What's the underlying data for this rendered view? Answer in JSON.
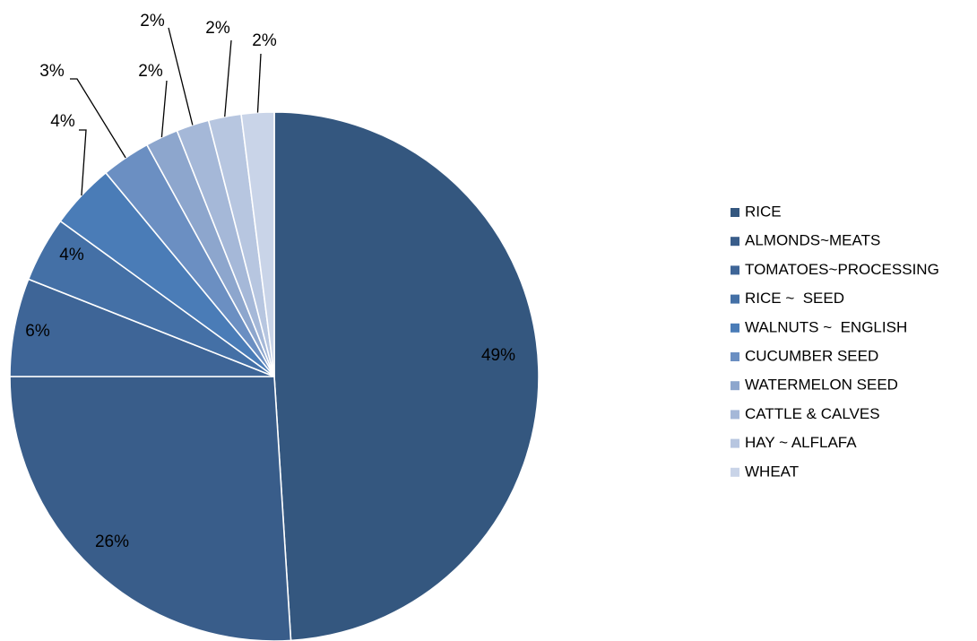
{
  "chart_data": {
    "type": "pie",
    "title": "",
    "slices": [
      {
        "name": "RICE",
        "value": 49,
        "label": "49%",
        "color": "#34577f"
      },
      {
        "name": "ALMONDS~MEATS",
        "value": 26,
        "label": "26%",
        "color": "#395d8a"
      },
      {
        "name": "TOMATOES~PROCESSING",
        "value": 6,
        "label": "6%",
        "color": "#3e6597"
      },
      {
        "name": "RICE ~  SEED",
        "value": 4,
        "label": "4%",
        "color": "#4470a6"
      },
      {
        "name": "WALNUTS ~  ENGLISH",
        "value": 4,
        "label": "4%",
        "color": "#4a7cb7"
      },
      {
        "name": "CUCUMBER SEED",
        "value": 3,
        "label": "3%",
        "color": "#6b8fc2"
      },
      {
        "name": "WATERMELON SEED",
        "value": 2,
        "label": "2%",
        "color": "#8da6cd"
      },
      {
        "name": "CATTLE & CALVES",
        "value": 2,
        "label": "2%",
        "color": "#a5b8d8"
      },
      {
        "name": "HAY ~ ALFLAFA",
        "value": 2,
        "label": "2%",
        "color": "#b7c6e0"
      },
      {
        "name": "WHEAT",
        "value": 2,
        "label": "2%",
        "color": "#c9d4e8"
      }
    ],
    "legend_position": "right"
  }
}
